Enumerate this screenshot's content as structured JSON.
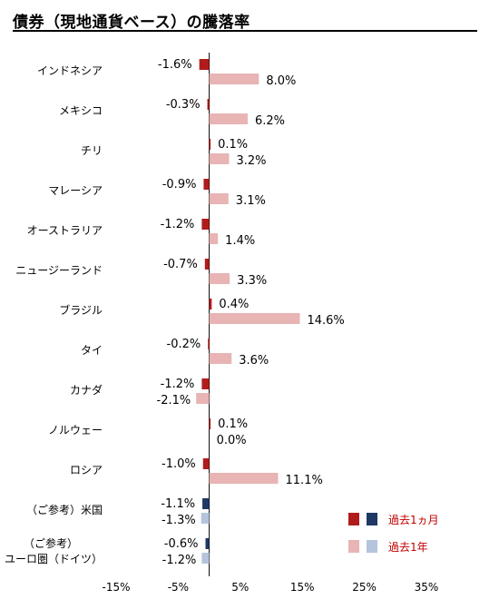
{
  "title": "債券（現地通貨ベース）の騰落率",
  "chart_data": {
    "type": "bar",
    "orientation": "horizontal",
    "xlim": [
      -15,
      35
    ],
    "xticks": [
      "-15%",
      "-5%",
      "5%",
      "15%",
      "25%",
      "35%"
    ],
    "xtick_values": [
      -15,
      -5,
      5,
      15,
      25,
      35
    ],
    "grid": false,
    "legend_position": "bottom-right",
    "categories": [
      {
        "label": [
          "インドネシア"
        ],
        "m1": -1.6,
        "m1_label": "-1.6%",
        "y1": 8.0,
        "y1_label": "8.0%",
        "style": "default"
      },
      {
        "label": [
          "メキシコ"
        ],
        "m1": -0.3,
        "m1_label": "-0.3%",
        "y1": 6.2,
        "y1_label": "6.2%",
        "style": "default"
      },
      {
        "label": [
          "チリ"
        ],
        "m1": 0.1,
        "m1_label": "0.1%",
        "y1": 3.2,
        "y1_label": "3.2%",
        "style": "default"
      },
      {
        "label": [
          "マレーシア"
        ],
        "m1": -0.9,
        "m1_label": "-0.9%",
        "y1": 3.1,
        "y1_label": "3.1%",
        "style": "default"
      },
      {
        "label": [
          "オーストラリア"
        ],
        "m1": -1.2,
        "m1_label": "-1.2%",
        "y1": 1.4,
        "y1_label": "1.4%",
        "style": "default"
      },
      {
        "label": [
          "ニュージーランド"
        ],
        "m1": -0.7,
        "m1_label": "-0.7%",
        "y1": 3.3,
        "y1_label": "3.3%",
        "style": "default"
      },
      {
        "label": [
          "ブラジル"
        ],
        "m1": 0.4,
        "m1_label": "0.4%",
        "y1": 14.6,
        "y1_label": "14.6%",
        "style": "default"
      },
      {
        "label": [
          "タイ"
        ],
        "m1": -0.2,
        "m1_label": "-0.2%",
        "y1": 3.6,
        "y1_label": "3.6%",
        "style": "default"
      },
      {
        "label": [
          "カナダ"
        ],
        "m1": -1.2,
        "m1_label": "-1.2%",
        "y1": -2.1,
        "y1_label": "-2.1%",
        "style": "default"
      },
      {
        "label": [
          "ノルウェー"
        ],
        "m1": 0.1,
        "m1_label": "0.1%",
        "y1": 0.0,
        "y1_label": "0.0%",
        "style": "default"
      },
      {
        "label": [
          "ロシア"
        ],
        "m1": -1.0,
        "m1_label": "-1.0%",
        "y1": 11.1,
        "y1_label": "11.1%",
        "style": "default"
      },
      {
        "label": [
          "（ご参考）米国"
        ],
        "m1": -1.1,
        "m1_label": "-1.1%",
        "y1": -1.3,
        "y1_label": "-1.3%",
        "style": "reference"
      },
      {
        "label": [
          "（ご参考）",
          "ユーロ圏（ドイツ）"
        ],
        "m1": -0.6,
        "m1_label": "-0.6%",
        "y1": -1.2,
        "y1_label": "-1.2%",
        "style": "reference"
      }
    ],
    "series": [
      {
        "key": "m1",
        "name": "過去1ヵ月",
        "color": "#b01c1c",
        "reference_color": "#1f3864"
      },
      {
        "key": "y1",
        "name": "過去1年",
        "color": "#e8b4b4",
        "reference_color": "#b4c4dc"
      }
    ]
  }
}
